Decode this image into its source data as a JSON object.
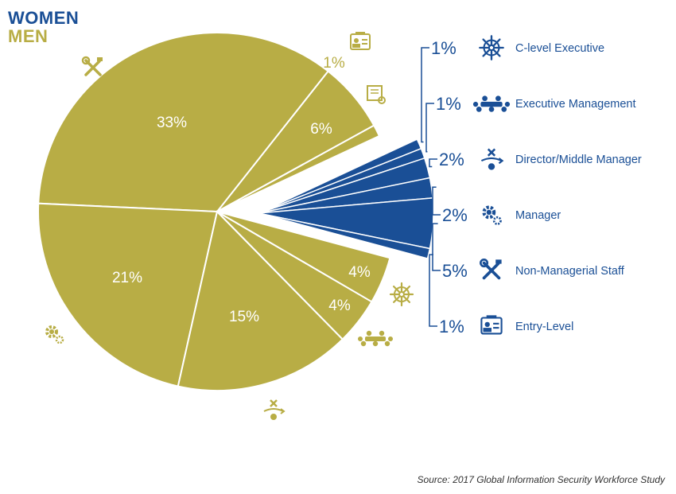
{
  "legend": {
    "women": "WOMEN",
    "men": "MEN"
  },
  "colors": {
    "women": "#1a4f96",
    "men": "#b8ad45",
    "connector": "#1a4f96"
  },
  "source": "Source: 2017 Global Information Security Workforce Study",
  "chart_data": {
    "type": "pie",
    "series": [
      {
        "name": "MEN",
        "slices": [
          {
            "category": "Entry-Level",
            "value": 1,
            "label": "1%",
            "icon": "id-badge-icon"
          },
          {
            "category": "Certificate",
            "value": 6,
            "label": "6%",
            "icon": "certificate-icon"
          },
          {
            "category": "Non-Managerial Staff",
            "value": 33,
            "label": "33%",
            "icon": "tools-icon"
          },
          {
            "category": "Manager",
            "value": 21,
            "label": "21%",
            "icon": "gears-icon"
          },
          {
            "category": "Director/Middle Manager",
            "value": 15,
            "label": "15%",
            "icon": "director-icon"
          },
          {
            "category": "Executive Management",
            "value": 4,
            "label": "4%",
            "icon": "meeting-icon"
          },
          {
            "category": "C-level Executive",
            "value": 4,
            "label": "4%",
            "icon": "ship-wheel-icon"
          }
        ]
      },
      {
        "name": "WOMEN",
        "slices": [
          {
            "category": "C-level Executive",
            "value": 1,
            "label": "1%",
            "icon": "ship-wheel-icon"
          },
          {
            "category": "Executive Management",
            "value": 1,
            "label": "1%",
            "icon": "meeting-icon"
          },
          {
            "category": "Director/Middle Manager",
            "value": 2,
            "label": "2%",
            "icon": "director-icon"
          },
          {
            "category": "Manager",
            "value": 2,
            "label": "2%",
            "icon": "gears-icon"
          },
          {
            "category": "Non-Managerial Staff",
            "value": 5,
            "label": "5%",
            "icon": "tools-icon"
          },
          {
            "category": "Entry-Level",
            "value": 1,
            "label": "1%",
            "icon": "id-badge-icon"
          }
        ]
      }
    ]
  }
}
